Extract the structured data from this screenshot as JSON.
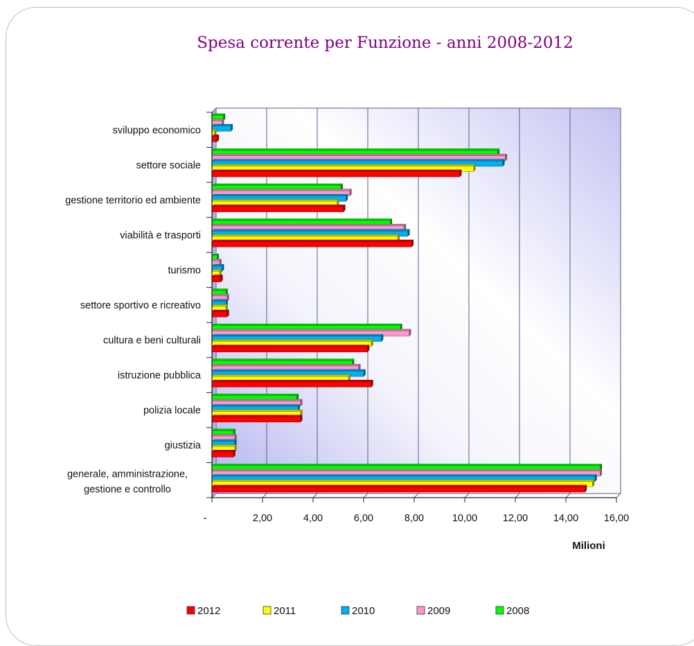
{
  "chart_data": {
    "type": "bar",
    "orientation": "horizontal",
    "title": "Spesa corrente per Funzione - anni 2008-2012",
    "xlabel": "Milioni",
    "ylabel": "",
    "xlim": [
      0,
      16
    ],
    "xticks": [
      0,
      2,
      4,
      6,
      8,
      10,
      12,
      14,
      16
    ],
    "xtick_labels": [
      "-",
      "2,00",
      "4,00",
      "6,00",
      "8,00",
      "10,00",
      "12,00",
      "14,00",
      "16,00"
    ],
    "grid": "vertical",
    "legend_position": "bottom",
    "categories": [
      "sviluppo economico",
      "settore sociale",
      "gestione territorio ed ambiente",
      "viabilità e trasporti",
      "turismo",
      "settore sportivo e ricreativo",
      "cultura e beni culturali",
      "istruzione pubblica",
      "polizia locale",
      "giustizia",
      "generale, amministrazione, gestione e controllo"
    ],
    "series": [
      {
        "name": "2012",
        "color": "#ff0000",
        "values": [
          0.2,
          9.8,
          5.2,
          7.9,
          0.35,
          0.6,
          6.15,
          6.3,
          3.5,
          0.85,
          14.75
        ]
      },
      {
        "name": "2011",
        "color": "#ffff00",
        "values": [
          0.1,
          10.35,
          4.95,
          7.35,
          0.3,
          0.55,
          6.3,
          5.4,
          3.5,
          0.9,
          15.05
        ]
      },
      {
        "name": "2010",
        "color": "#00b0f0",
        "values": [
          0.75,
          11.5,
          5.3,
          7.75,
          0.4,
          0.55,
          6.7,
          6.0,
          3.4,
          0.9,
          15.15
        ]
      },
      {
        "name": "2009",
        "color": "#ff99cc",
        "values": [
          0.4,
          11.6,
          5.45,
          7.6,
          0.3,
          0.6,
          7.8,
          5.8,
          3.5,
          0.9,
          15.35
        ]
      },
      {
        "name": "2008",
        "color": "#00ff00",
        "values": [
          0.45,
          11.3,
          5.1,
          7.05,
          0.2,
          0.55,
          7.45,
          5.55,
          3.35,
          0.85,
          15.35
        ]
      }
    ],
    "legend_order": [
      "2012",
      "2011",
      "2010",
      "2009",
      "2008"
    ]
  }
}
